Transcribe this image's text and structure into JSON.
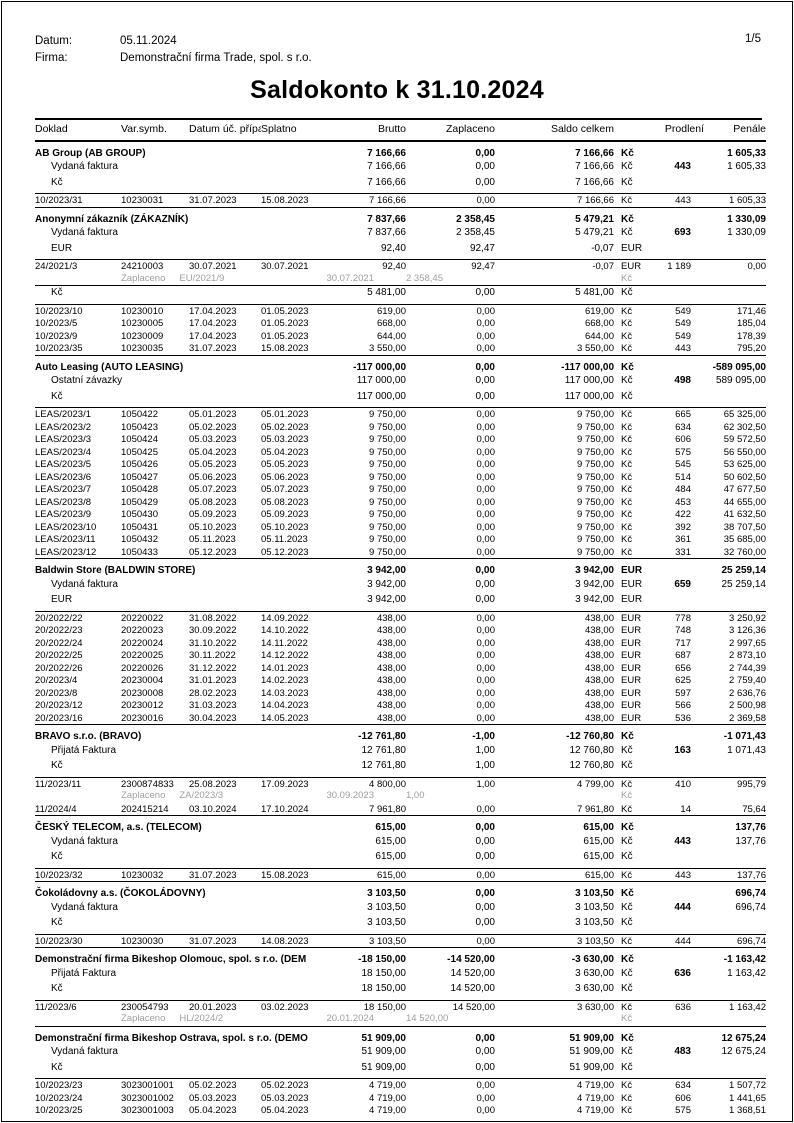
{
  "header": {
    "datum_label": "Datum:",
    "datum_value": "05.11.2024",
    "firma_label": "Firma:",
    "firma_value": "Demonstrační firma Trade, spol. s r.o.",
    "page_number": "1/5"
  },
  "title": "Saldokonto k 31.10.2024",
  "colors": {
    "text": "#000000",
    "muted_text": "#9e9e9e",
    "rule": "#000000",
    "background": "#ffffff"
  },
  "table": {
    "headers": [
      "Doklad",
      "Var.symb.",
      "Datum úč. případu",
      "Splatno",
      "Brutto",
      "Zaplaceno",
      "Saldo celkem",
      "Prodlení",
      "Penále"
    ],
    "groups": [
      {
        "name": "AB Group (AB GROUP)",
        "summary": {
          "br": "7 166,66",
          "za": "0,00",
          "sa": "7 166,66",
          "cur": "Kč",
          "pe": "1 605,33"
        },
        "rows": [
          {
            "t": "type",
            "label": "Vydaná faktura",
            "br": "7 166,66",
            "za": "0,00",
            "sa": "7 166,66",
            "cur": "Kč",
            "pr": "443",
            "pe": "1 605,33"
          },
          {
            "t": "cur",
            "label": "Kč",
            "br": "7 166,66",
            "za": "0,00",
            "sa": "7 166,66",
            "cur": "Kč"
          },
          {
            "t": "detail",
            "doklad": "10/2023/31",
            "vs": "10230031",
            "d1": "31.07.2023",
            "d2": "15.08.2023",
            "br": "7 166,66",
            "za": "0,00",
            "sa": "7 166,66",
            "cur": "Kč",
            "pr": "443",
            "pe": "1 605,33"
          }
        ]
      },
      {
        "name": "Anonymní zákazník (ZÁKAZNÍK)",
        "summary": {
          "br": "7 837,66",
          "za": "2 358,45",
          "sa": "5 479,21",
          "cur": "Kč",
          "pe": "1 330,09"
        },
        "rows": [
          {
            "t": "type",
            "label": "Vydaná faktura",
            "br": "7 837,66",
            "za": "2 358,45",
            "sa": "5 479,21",
            "cur": "Kč",
            "pr": "693",
            "pe": "1 330,09"
          },
          {
            "t": "cur",
            "label": "EUR",
            "br": "92,40",
            "za": "92,47",
            "sa": "-0,07",
            "cur": "EUR"
          },
          {
            "t": "detail",
            "doklad": "24/2021/3",
            "vs": "24210003",
            "d1": "30.07.2021",
            "d2": "30.07.2021",
            "br": "92,40",
            "za": "92,47",
            "sa": "-0,07",
            "cur": "EUR",
            "pr": "1 189",
            "pe": "0,00"
          },
          {
            "t": "paid",
            "label": "Zaplaceno",
            "doc": "EU/2021/9",
            "date": "30.07.2021",
            "amount": "2 358,45",
            "cur": "Kč"
          },
          {
            "t": "cur",
            "label": "Kč",
            "br": "5 481,00",
            "za": "0,00",
            "sa": "5 481,00",
            "cur": "Kč"
          },
          {
            "t": "detail",
            "doklad": "10/2023/10",
            "vs": "10230010",
            "d1": "17.04.2023",
            "d2": "01.05.2023",
            "br": "619,00",
            "za": "0,00",
            "sa": "619,00",
            "cur": "Kč",
            "pr": "549",
            "pe": "171,46"
          },
          {
            "t": "detail",
            "doklad": "10/2023/5",
            "vs": "10230005",
            "d1": "17.04.2023",
            "d2": "01.05.2023",
            "br": "668,00",
            "za": "0,00",
            "sa": "668,00",
            "cur": "Kč",
            "pr": "549",
            "pe": "185,04"
          },
          {
            "t": "detail",
            "doklad": "10/2023/9",
            "vs": "10230009",
            "d1": "17.04.2023",
            "d2": "01.05.2023",
            "br": "644,00",
            "za": "0,00",
            "sa": "644,00",
            "cur": "Kč",
            "pr": "549",
            "pe": "178,39"
          },
          {
            "t": "detail",
            "doklad": "10/2023/35",
            "vs": "10230035",
            "d1": "31.07.2023",
            "d2": "15.08.2023",
            "br": "3 550,00",
            "za": "0,00",
            "sa": "3 550,00",
            "cur": "Kč",
            "pr": "443",
            "pe": "795,20"
          }
        ]
      },
      {
        "name": "Auto Leasing (AUTO LEASING)",
        "summary": {
          "br": "-117 000,00",
          "za": "0,00",
          "sa": "-117 000,00",
          "cur": "Kč",
          "pe": "-589 095,00"
        },
        "rows": [
          {
            "t": "type",
            "label": "Ostatní závazky",
            "br": "117 000,00",
            "za": "0,00",
            "sa": "117 000,00",
            "cur": "Kč",
            "pr": "498",
            "pe": "589 095,00"
          },
          {
            "t": "cur",
            "label": "Kč",
            "br": "117 000,00",
            "za": "0,00",
            "sa": "117 000,00",
            "cur": "Kč"
          },
          {
            "t": "detail",
            "doklad": "LEAS/2023/1",
            "vs": "1050422",
            "d1": "05.01.2023",
            "d2": "05.01.2023",
            "br": "9 750,00",
            "za": "0,00",
            "sa": "9 750,00",
            "cur": "Kč",
            "pr": "665",
            "pe": "65 325,00"
          },
          {
            "t": "detail",
            "doklad": "LEAS/2023/2",
            "vs": "1050423",
            "d1": "05.02.2023",
            "d2": "05.02.2023",
            "br": "9 750,00",
            "za": "0,00",
            "sa": "9 750,00",
            "cur": "Kč",
            "pr": "634",
            "pe": "62 302,50"
          },
          {
            "t": "detail",
            "doklad": "LEAS/2023/3",
            "vs": "1050424",
            "d1": "05.03.2023",
            "d2": "05.03.2023",
            "br": "9 750,00",
            "za": "0,00",
            "sa": "9 750,00",
            "cur": "Kč",
            "pr": "606",
            "pe": "59 572,50"
          },
          {
            "t": "detail",
            "doklad": "LEAS/2023/4",
            "vs": "1050425",
            "d1": "05.04.2023",
            "d2": "05.04.2023",
            "br": "9 750,00",
            "za": "0,00",
            "sa": "9 750,00",
            "cur": "Kč",
            "pr": "575",
            "pe": "56 550,00"
          },
          {
            "t": "detail",
            "doklad": "LEAS/2023/5",
            "vs": "1050426",
            "d1": "05.05.2023",
            "d2": "05.05.2023",
            "br": "9 750,00",
            "za": "0,00",
            "sa": "9 750,00",
            "cur": "Kč",
            "pr": "545",
            "pe": "53 625,00"
          },
          {
            "t": "detail",
            "doklad": "LEAS/2023/6",
            "vs": "1050427",
            "d1": "05.06.2023",
            "d2": "05.06.2023",
            "br": "9 750,00",
            "za": "0,00",
            "sa": "9 750,00",
            "cur": "Kč",
            "pr": "514",
            "pe": "50 602,50"
          },
          {
            "t": "detail",
            "doklad": "LEAS/2023/7",
            "vs": "1050428",
            "d1": "05.07.2023",
            "d2": "05.07.2023",
            "br": "9 750,00",
            "za": "0,00",
            "sa": "9 750,00",
            "cur": "Kč",
            "pr": "484",
            "pe": "47 677,50"
          },
          {
            "t": "detail",
            "doklad": "LEAS/2023/8",
            "vs": "1050429",
            "d1": "05.08.2023",
            "d2": "05.08.2023",
            "br": "9 750,00",
            "za": "0,00",
            "sa": "9 750,00",
            "cur": "Kč",
            "pr": "453",
            "pe": "44 655,00"
          },
          {
            "t": "detail",
            "doklad": "LEAS/2023/9",
            "vs": "1050430",
            "d1": "05.09.2023",
            "d2": "05.09.2023",
            "br": "9 750,00",
            "za": "0,00",
            "sa": "9 750,00",
            "cur": "Kč",
            "pr": "422",
            "pe": "41 632,50"
          },
          {
            "t": "detail",
            "doklad": "LEAS/2023/10",
            "vs": "1050431",
            "d1": "05.10.2023",
            "d2": "05.10.2023",
            "br": "9 750,00",
            "za": "0,00",
            "sa": "9 750,00",
            "cur": "Kč",
            "pr": "392",
            "pe": "38 707,50"
          },
          {
            "t": "detail",
            "doklad": "LEAS/2023/11",
            "vs": "1050432",
            "d1": "05.11.2023",
            "d2": "05.11.2023",
            "br": "9 750,00",
            "za": "0,00",
            "sa": "9 750,00",
            "cur": "Kč",
            "pr": "361",
            "pe": "35 685,00"
          },
          {
            "t": "detail",
            "doklad": "LEAS/2023/12",
            "vs": "1050433",
            "d1": "05.12.2023",
            "d2": "05.12.2023",
            "br": "9 750,00",
            "za": "0,00",
            "sa": "9 750,00",
            "cur": "Kč",
            "pr": "331",
            "pe": "32 760,00"
          }
        ]
      },
      {
        "name": "Baldwin Store (BALDWIN STORE)",
        "summary": {
          "br": "3 942,00",
          "za": "0,00",
          "sa": "3 942,00",
          "cur": "EUR",
          "pe": "25 259,14"
        },
        "rows": [
          {
            "t": "type",
            "label": "Vydaná faktura",
            "br": "3 942,00",
            "za": "0,00",
            "sa": "3 942,00",
            "cur": "EUR",
            "pr": "659",
            "pe": "25 259,14"
          },
          {
            "t": "cur",
            "label": "EUR",
            "br": "3 942,00",
            "za": "0,00",
            "sa": "3 942,00",
            "cur": "EUR"
          },
          {
            "t": "detail",
            "doklad": "20/2022/22",
            "vs": "20220022",
            "d1": "31.08.2022",
            "d2": "14.09.2022",
            "br": "438,00",
            "za": "0,00",
            "sa": "438,00",
            "cur": "EUR",
            "pr": "778",
            "pe": "3 250,92"
          },
          {
            "t": "detail",
            "doklad": "20/2022/23",
            "vs": "20220023",
            "d1": "30.09.2022",
            "d2": "14.10.2022",
            "br": "438,00",
            "za": "0,00",
            "sa": "438,00",
            "cur": "EUR",
            "pr": "748",
            "pe": "3 126,36"
          },
          {
            "t": "detail",
            "doklad": "20/2022/24",
            "vs": "20220024",
            "d1": "31.10.2022",
            "d2": "14.11.2022",
            "br": "438,00",
            "za": "0,00",
            "sa": "438,00",
            "cur": "EUR",
            "pr": "717",
            "pe": "2 997,65"
          },
          {
            "t": "detail",
            "doklad": "20/2022/25",
            "vs": "20220025",
            "d1": "30.11.2022",
            "d2": "14.12.2022",
            "br": "438,00",
            "za": "0,00",
            "sa": "438,00",
            "cur": "EUR",
            "pr": "687",
            "pe": "2 873,10"
          },
          {
            "t": "detail",
            "doklad": "20/2022/26",
            "vs": "20220026",
            "d1": "31.12.2022",
            "d2": "14.01.2023",
            "br": "438,00",
            "za": "0,00",
            "sa": "438,00",
            "cur": "EUR",
            "pr": "656",
            "pe": "2 744,39"
          },
          {
            "t": "detail",
            "doklad": "20/2023/4",
            "vs": "20230004",
            "d1": "31.01.2023",
            "d2": "14.02.2023",
            "br": "438,00",
            "za": "0,00",
            "sa": "438,00",
            "cur": "EUR",
            "pr": "625",
            "pe": "2 759,40"
          },
          {
            "t": "detail",
            "doklad": "20/2023/8",
            "vs": "20230008",
            "d1": "28.02.2023",
            "d2": "14.03.2023",
            "br": "438,00",
            "za": "0,00",
            "sa": "438,00",
            "cur": "EUR",
            "pr": "597",
            "pe": "2 636,76"
          },
          {
            "t": "detail",
            "doklad": "20/2023/12",
            "vs": "20230012",
            "d1": "31.03.2023",
            "d2": "14.04.2023",
            "br": "438,00",
            "za": "0,00",
            "sa": "438,00",
            "cur": "EUR",
            "pr": "566",
            "pe": "2 500,98"
          },
          {
            "t": "detail",
            "doklad": "20/2023/16",
            "vs": "20230016",
            "d1": "30.04.2023",
            "d2": "14.05.2023",
            "br": "438,00",
            "za": "0,00",
            "sa": "438,00",
            "cur": "EUR",
            "pr": "536",
            "pe": "2 369,58"
          }
        ]
      },
      {
        "name": "BRAVO s.r.o. (BRAVO)",
        "summary": {
          "br": "-12 761,80",
          "za": "-1,00",
          "sa": "-12 760,80",
          "cur": "Kč",
          "pe": "-1 071,43"
        },
        "rows": [
          {
            "t": "type",
            "label": "Přijatá Faktura",
            "br": "12 761,80",
            "za": "1,00",
            "sa": "12 760,80",
            "cur": "Kč",
            "pr": "163",
            "pe": "1 071,43"
          },
          {
            "t": "cur",
            "label": "Kč",
            "br": "12 761,80",
            "za": "1,00",
            "sa": "12 760,80",
            "cur": "Kč"
          },
          {
            "t": "detail",
            "doklad": "11/2023/11",
            "vs": "2300874833",
            "d1": "25.08.2023",
            "d2": "17.09.2023",
            "br": "4 800,00",
            "za": "1,00",
            "sa": "4 799,00",
            "cur": "Kč",
            "pr": "410",
            "pe": "995,79"
          },
          {
            "t": "paid",
            "label": "Zaplaceno",
            "doc": "ZA/2023/3",
            "date": "30.09.2023",
            "amount": "1,00",
            "cur": "Kč"
          },
          {
            "t": "detail",
            "doklad": "11/2024/4",
            "vs": "202415214",
            "d1": "03.10.2024",
            "d2": "17.10.2024",
            "br": "7 961,80",
            "za": "0,00",
            "sa": "7 961,80",
            "cur": "Kč",
            "pr": "14",
            "pe": "75,64"
          }
        ]
      },
      {
        "name": "ČESKÝ TELECOM, a.s. (TELECOM)",
        "summary": {
          "br": "615,00",
          "za": "0,00",
          "sa": "615,00",
          "cur": "Kč",
          "pe": "137,76"
        },
        "rows": [
          {
            "t": "type",
            "label": "Vydaná faktura",
            "br": "615,00",
            "za": "0,00",
            "sa": "615,00",
            "cur": "Kč",
            "pr": "443",
            "pe": "137,76"
          },
          {
            "t": "cur",
            "label": "Kč",
            "br": "615,00",
            "za": "0,00",
            "sa": "615,00",
            "cur": "Kč"
          },
          {
            "t": "detail",
            "doklad": "10/2023/32",
            "vs": "10230032",
            "d1": "31.07.2023",
            "d2": "15.08.2023",
            "br": "615,00",
            "za": "0,00",
            "sa": "615,00",
            "cur": "Kč",
            "pr": "443",
            "pe": "137,76"
          }
        ]
      },
      {
        "name": "Čokoládovny a.s. (ČOKOLÁDOVNY)",
        "summary": {
          "br": "3 103,50",
          "za": "0,00",
          "sa": "3 103,50",
          "cur": "Kč",
          "pe": "696,74"
        },
        "rows": [
          {
            "t": "type",
            "label": "Vydaná faktura",
            "br": "3 103,50",
            "za": "0,00",
            "sa": "3 103,50",
            "cur": "Kč",
            "pr": "444",
            "pe": "696,74"
          },
          {
            "t": "cur",
            "label": "Kč",
            "br": "3 103,50",
            "za": "0,00",
            "sa": "3 103,50",
            "cur": "Kč"
          },
          {
            "t": "detail",
            "doklad": "10/2023/30",
            "vs": "10230030",
            "d1": "31.07.2023",
            "d2": "14.08.2023",
            "br": "3 103,50",
            "za": "0,00",
            "sa": "3 103,50",
            "cur": "Kč",
            "pr": "444",
            "pe": "696,74"
          }
        ]
      },
      {
        "name": "Demonstrační firma Bikeshop Olomouc, spol. s r.o. (DEM",
        "summary": {
          "br": "-18 150,00",
          "za": "-14 520,00",
          "sa": "-3 630,00",
          "cur": "Kč",
          "pe": "-1 163,42"
        },
        "rows": [
          {
            "t": "type",
            "label": "Přijatá Faktura",
            "br": "18 150,00",
            "za": "14 520,00",
            "sa": "3 630,00",
            "cur": "Kč",
            "pr": "636",
            "pe": "1 163,42"
          },
          {
            "t": "cur",
            "label": "Kč",
            "br": "18 150,00",
            "za": "14 520,00",
            "sa": "3 630,00",
            "cur": "Kč"
          },
          {
            "t": "detail",
            "doklad": "11/2023/6",
            "vs": "230054793",
            "d1": "20.01.2023",
            "d2": "03.02.2023",
            "br": "18 150,00",
            "za": "14 520,00",
            "sa": "3 630,00",
            "cur": "Kč",
            "pr": "636",
            "pe": "1 163,42"
          },
          {
            "t": "paid",
            "label": "Zaplaceno",
            "doc": "HL/2024/2",
            "date": "20.01.2024",
            "amount": "14 520,00",
            "cur": "Kč"
          }
        ]
      },
      {
        "name": "Demonstrační firma Bikeshop Ostrava, spol. s r.o. (DEMO",
        "summary": {
          "br": "51 909,00",
          "za": "0,00",
          "sa": "51 909,00",
          "cur": "Kč",
          "pe": "12 675,24"
        },
        "rows": [
          {
            "t": "type",
            "label": "Vydaná faktura",
            "br": "51 909,00",
            "za": "0,00",
            "sa": "51 909,00",
            "cur": "Kč",
            "pr": "483",
            "pe": "12 675,24"
          },
          {
            "t": "cur",
            "label": "Kč",
            "br": "51 909,00",
            "za": "0,00",
            "sa": "51 909,00",
            "cur": "Kč"
          },
          {
            "t": "detail",
            "doklad": "10/2023/23",
            "vs": "3023001001",
            "d1": "05.02.2023",
            "d2": "05.02.2023",
            "br": "4 719,00",
            "za": "0,00",
            "sa": "4 719,00",
            "cur": "Kč",
            "pr": "634",
            "pe": "1 507,72"
          },
          {
            "t": "detail",
            "doklad": "10/2023/24",
            "vs": "3023001002",
            "d1": "05.03.2023",
            "d2": "05.03.2023",
            "br": "4 719,00",
            "za": "0,00",
            "sa": "4 719,00",
            "cur": "Kč",
            "pr": "606",
            "pe": "1 441,65"
          },
          {
            "t": "detail",
            "doklad": "10/2023/25",
            "vs": "3023001003",
            "d1": "05.04.2023",
            "d2": "05.04.2023",
            "br": "4 719,00",
            "za": "0,00",
            "sa": "4 719,00",
            "cur": "Kč",
            "pr": "575",
            "pe": "1 368,51"
          }
        ]
      }
    ]
  }
}
